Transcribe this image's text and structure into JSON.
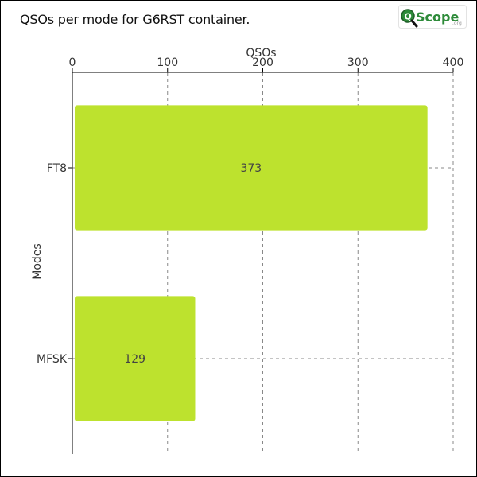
{
  "chart_data": {
    "type": "bar",
    "orientation": "horizontal",
    "title": "QSOs per mode for G6RST container.",
    "xlabel": "QSOs",
    "ylabel": "Modes",
    "categories": [
      "FT8",
      "MFSK"
    ],
    "values": [
      373,
      129
    ],
    "xlim": [
      0,
      400
    ],
    "xticks": [
      0,
      100,
      200,
      300,
      400
    ],
    "x_axis_position": "top",
    "grid": true,
    "bar_color": "#bde22e"
  },
  "logo": {
    "q": "Q",
    "text": "Scope",
    "suffix": ".org"
  }
}
